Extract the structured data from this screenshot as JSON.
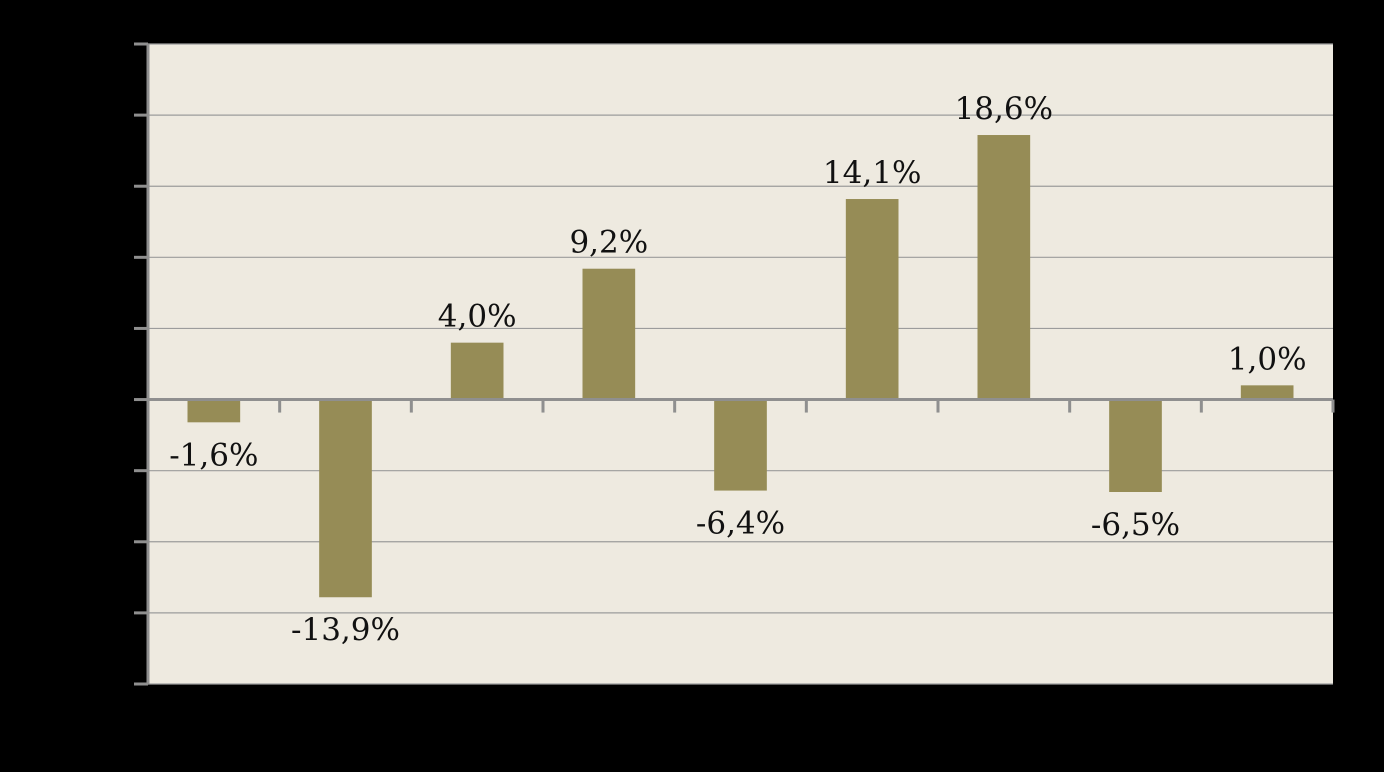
{
  "chart_data": {
    "type": "bar",
    "categories": [
      "",
      "",
      "",
      "",
      "",
      "",
      "",
      "",
      ""
    ],
    "values": [
      -1.6,
      -13.9,
      4.0,
      9.2,
      -6.4,
      14.1,
      18.6,
      -6.5,
      1.0
    ],
    "data_labels": [
      "-1,6%",
      "-13,9%",
      "4,0%",
      "9,2%",
      "-6,4%",
      "14,1%",
      "18,6%",
      "-6,5%",
      "1,0%"
    ],
    "ylim": [
      -20,
      25
    ],
    "ytick_step": 5,
    "grid": true,
    "legend": "none",
    "title": "",
    "xlabel": "",
    "ylabel": "",
    "colors": {
      "page_background": "#000000",
      "plot_background": "#EEEAE0",
      "bar": "#968C56",
      "axis": "#8F8F8F",
      "gridline": "#9C9C9C",
      "label_text": "#111111"
    }
  }
}
